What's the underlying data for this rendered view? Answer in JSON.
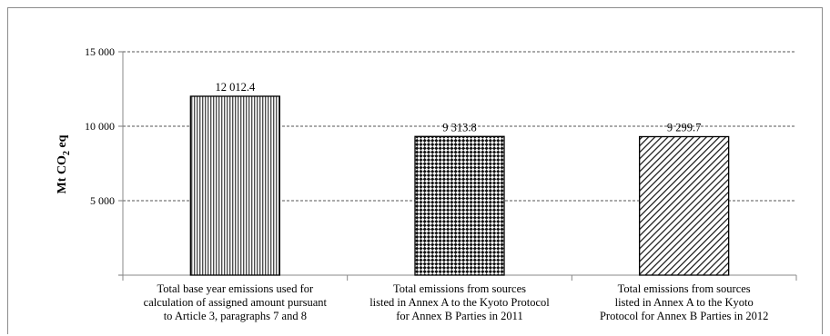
{
  "chart_data": {
    "type": "bar",
    "categories": [
      [
        "Total base year emissions used for",
        "calculation of assigned amount pursuant",
        "to Article 3, paragraphs 7 and 8"
      ],
      [
        "Total emissions from sources",
        "listed in Annex A to the Kyoto Protocol",
        "for Annex B Parties in 2011"
      ],
      [
        "Total emissions from sources",
        "listed in Annex A to the Kyoto",
        "Protocol for Annex B Parties in 2012"
      ]
    ],
    "values": [
      12012.4,
      9313.8,
      9299.7
    ],
    "data_labels": [
      "12 012.4",
      "9 313.8",
      "9 299.7"
    ],
    "patterns": [
      "vertical-lines",
      "checkerboard-diamonds",
      "diagonal-lines"
    ],
    "ylabel": "Mt CO",
    "ylabel_subscript": "2",
    "ylabel_suffix": " eq",
    "yticks": [
      5000,
      10000,
      15000
    ],
    "ytick_labels": [
      "5 000",
      "10 000",
      "15 000"
    ],
    "ylim": [
      0,
      15000
    ],
    "grid": "dashed-horizontal",
    "legend": "none"
  }
}
